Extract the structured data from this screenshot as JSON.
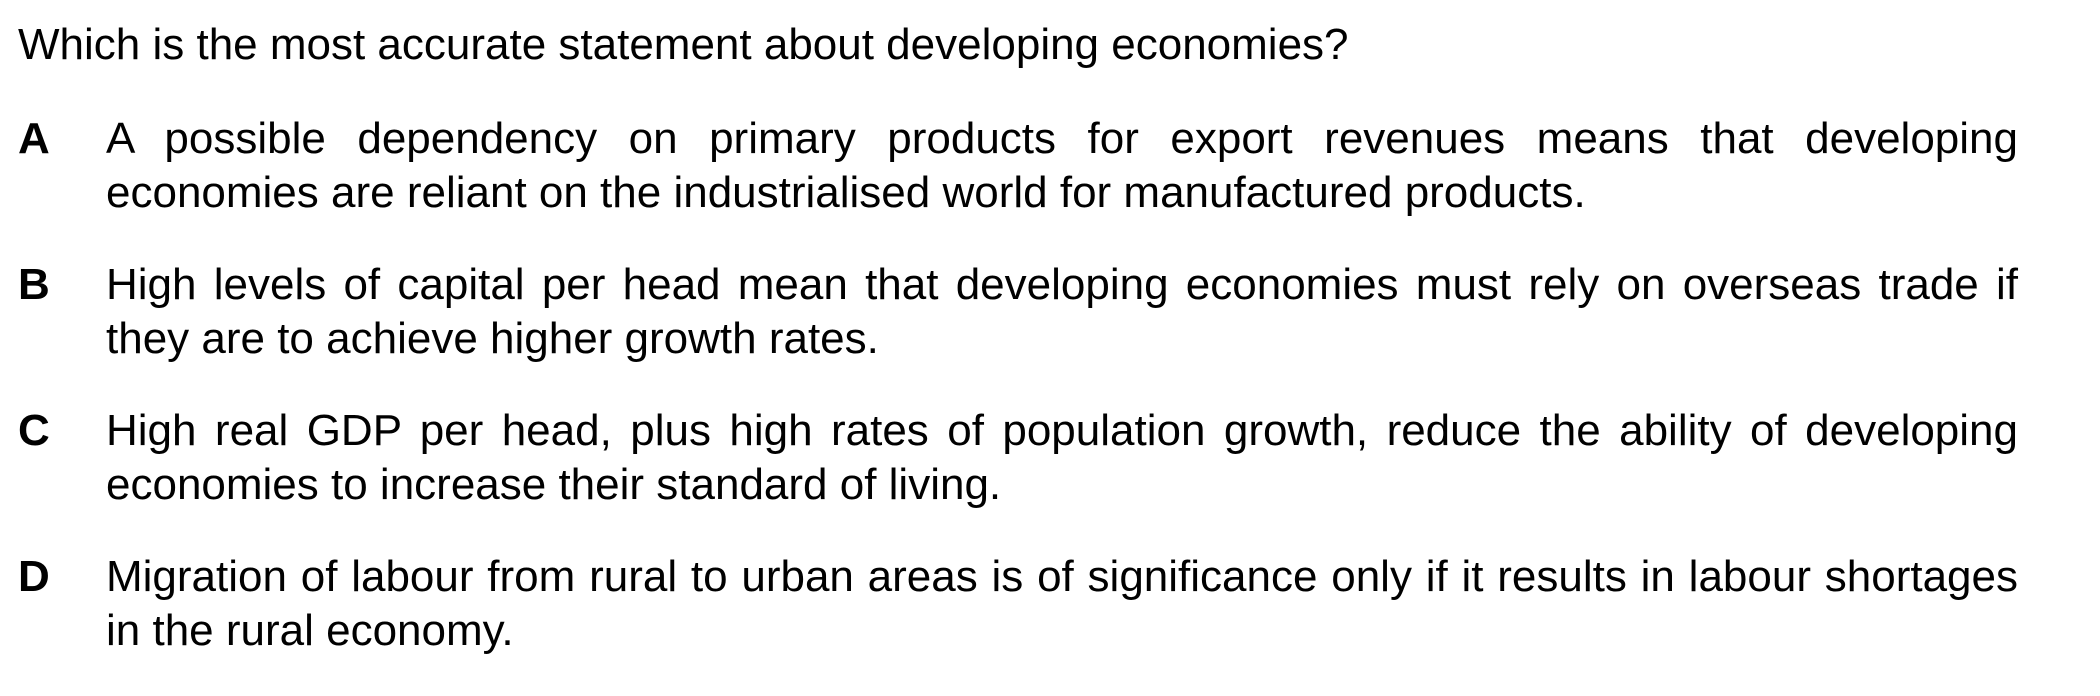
{
  "question": "Which is the most accurate statement about developing economies?",
  "options": [
    {
      "letter": "A",
      "text": "A possible dependency on primary products for export revenues means that developing economies are reliant on the industrialised world for manufactured products."
    },
    {
      "letter": "B",
      "text": "High levels of capital per head mean that developing economies must rely on overseas trade if they are to achieve higher growth rates."
    },
    {
      "letter": "C",
      "text": "High real GDP per head, plus high rates of population growth, reduce the ability of developing economies to increase their standard of living."
    },
    {
      "letter": "D",
      "text": "Migration of labour from rural to urban areas is of significance only if it results in labour shortages in the rural economy."
    }
  ]
}
